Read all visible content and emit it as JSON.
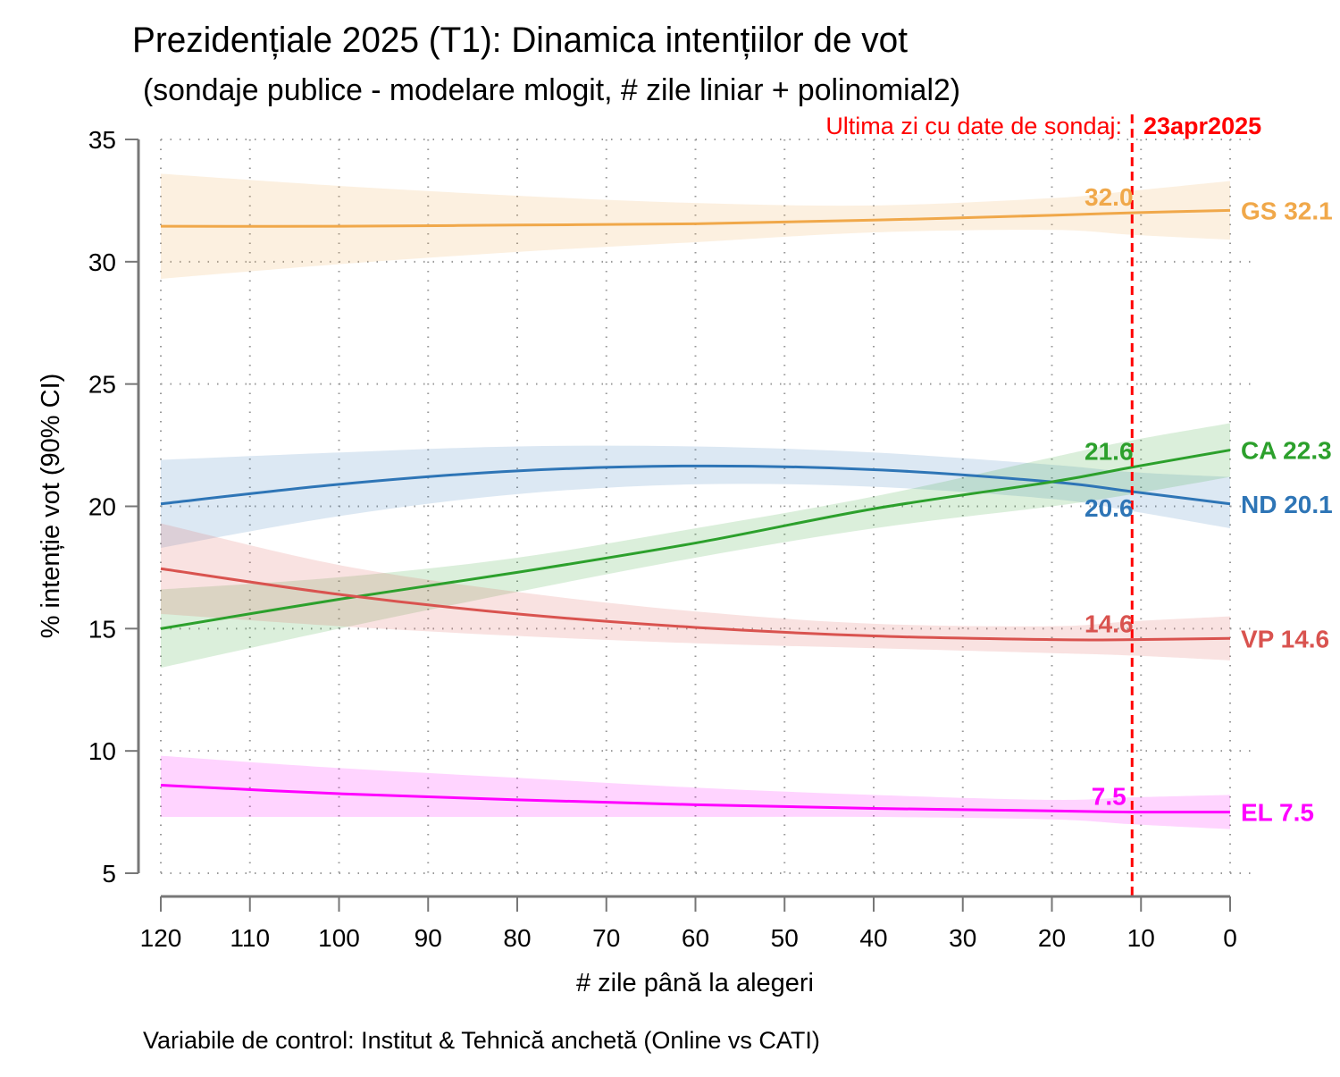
{
  "chart_data": {
    "type": "line",
    "title": "Prezidențiale 2025 (T1): Dinamica intențiilor de vot",
    "subtitle": "(sondaje publice - modelare mlogit, # zile liniar + polinomial2)",
    "xlabel": "# zile până la alegeri",
    "ylabel": "% intenție vot (90% CI)",
    "note": "Variabile de control: Institut & Tehnică anchetă (Online vs CATI)",
    "xlim": [
      120,
      0
    ],
    "ylim": [
      5,
      35
    ],
    "xticks": [
      120,
      110,
      100,
      90,
      80,
      70,
      60,
      50,
      40,
      30,
      20,
      10,
      0
    ],
    "yticks": [
      5,
      10,
      15,
      20,
      25,
      30,
      35
    ],
    "grid": true,
    "vline": {
      "x": 11,
      "label": "Ultima zi cu date de sondaj:",
      "date": "23apr2025",
      "color": "#ff0000"
    },
    "x": [
      120,
      100,
      80,
      60,
      40,
      20,
      11,
      0
    ],
    "series": [
      {
        "name": "GS",
        "color": "#f0a84a",
        "values": [
          31.45,
          31.45,
          31.5,
          31.55,
          31.7,
          31.9,
          32.0,
          32.1
        ],
        "lo": [
          29.3,
          29.9,
          30.4,
          30.8,
          31.2,
          31.3,
          31.1,
          30.9
        ],
        "hi": [
          33.6,
          33.1,
          32.7,
          32.4,
          32.3,
          32.6,
          32.9,
          33.3
        ],
        "vline_label": "32.0",
        "end_label": "GS 32.1",
        "vline_pos": "above"
      },
      {
        "name": "ND",
        "color": "#2e75b6",
        "values": [
          20.1,
          20.9,
          21.45,
          21.65,
          21.5,
          21.0,
          20.6,
          20.1
        ],
        "lo": [
          18.3,
          19.6,
          20.5,
          20.9,
          20.8,
          20.3,
          19.8,
          19.1
        ],
        "hi": [
          21.9,
          22.2,
          22.45,
          22.45,
          22.2,
          21.7,
          21.4,
          21.2
        ],
        "vline_label": "20.6",
        "end_label": "ND 20.1",
        "vline_pos": "below"
      },
      {
        "name": "CA",
        "color": "#2ca02c",
        "values": [
          15.0,
          16.2,
          17.3,
          18.5,
          19.9,
          21.0,
          21.6,
          22.3
        ],
        "lo": [
          13.4,
          15.0,
          16.5,
          17.9,
          19.1,
          20.0,
          20.5,
          21.2
        ],
        "hi": [
          16.6,
          17.1,
          17.9,
          19.1,
          20.4,
          22.0,
          22.7,
          23.4
        ],
        "vline_label": "21.6",
        "end_label": "CA 22.3",
        "vline_pos": "above"
      },
      {
        "name": "VP",
        "color": "#d9534f",
        "values": [
          17.45,
          16.4,
          15.6,
          15.05,
          14.7,
          14.55,
          14.55,
          14.6
        ],
        "lo": [
          15.6,
          15.1,
          14.7,
          14.4,
          14.2,
          14.0,
          13.9,
          13.7
        ],
        "hi": [
          19.3,
          17.6,
          16.5,
          15.7,
          15.2,
          15.1,
          15.3,
          15.5
        ],
        "vline_label": "14.6",
        "end_label": "VP 14.6",
        "vline_pos": "above"
      },
      {
        "name": "EL",
        "color": "#ff00ff",
        "values": [
          8.6,
          8.25,
          8.0,
          7.8,
          7.65,
          7.55,
          7.5,
          7.5
        ],
        "lo": [
          7.3,
          7.3,
          7.3,
          7.3,
          7.3,
          7.2,
          7.0,
          6.8
        ],
        "hi": [
          9.8,
          9.3,
          8.9,
          8.5,
          8.2,
          8.0,
          8.1,
          8.2
        ],
        "vline_label": "7.5",
        "end_label": "EL 7.5",
        "vline_pos": "above"
      }
    ]
  }
}
